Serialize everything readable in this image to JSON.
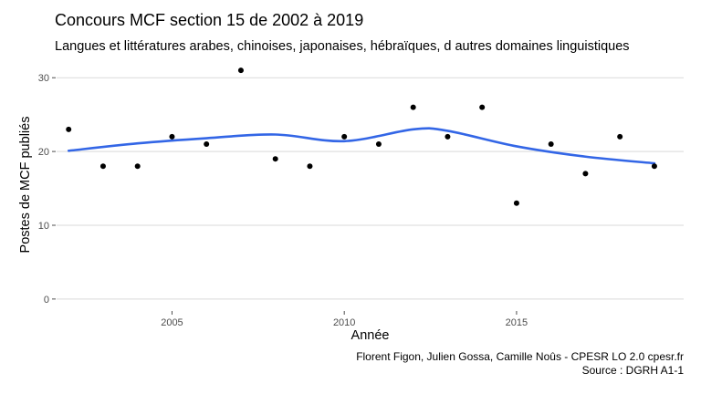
{
  "header": {
    "title": "Concours MCF section 15 de 2002 à 2019",
    "subtitle": "Langues et littératures arabes, chinoises, japonaises, hébraïques, d autres domaines linguistiques"
  },
  "caption": {
    "line1": "Florent Figon, Julien Gossa, Camille Noûs - CPESR LO 2.0 cpesr.fr",
    "line2": "Source : DGRH A1-1"
  },
  "colors": {
    "points": "#000000",
    "smooth_line": "#3366e6",
    "grid": "#d9d9d9"
  },
  "chart_data": {
    "type": "scatter",
    "title": "Concours MCF section 15 de 2002 à 2019",
    "subtitle": "Langues et littératures arabes, chinoises, japonaises, hébraïques, d autres domaines linguistiques",
    "xlabel": "Année",
    "ylabel": "Postes de MCF publiés",
    "xlim": [
      2001.65,
      2019.85
    ],
    "ylim": [
      -1.5,
      32.5
    ],
    "x_ticks": [
      2005,
      2010,
      2015
    ],
    "y_ticks": [
      0,
      10,
      20,
      30
    ],
    "grid": "horizontal",
    "series": [
      {
        "type": "points",
        "x": [
          2002,
          2003,
          2004,
          2005,
          2006,
          2007,
          2008,
          2009,
          2010,
          2011,
          2012,
          2013,
          2014,
          2015,
          2016,
          2017,
          2018,
          2019
        ],
        "y": [
          23,
          18,
          18,
          22,
          21,
          31,
          19,
          18,
          22,
          21,
          26,
          22,
          26,
          13,
          21,
          17,
          22,
          18
        ]
      },
      {
        "type": "smooth",
        "x": [
          2002,
          2004,
          2006,
          2008,
          2010,
          2012,
          2013,
          2015,
          2017,
          2019
        ],
        "y": [
          20.1,
          21.1,
          21.8,
          22.3,
          21.4,
          23.0,
          22.8,
          20.7,
          19.3,
          18.4
        ]
      }
    ]
  }
}
